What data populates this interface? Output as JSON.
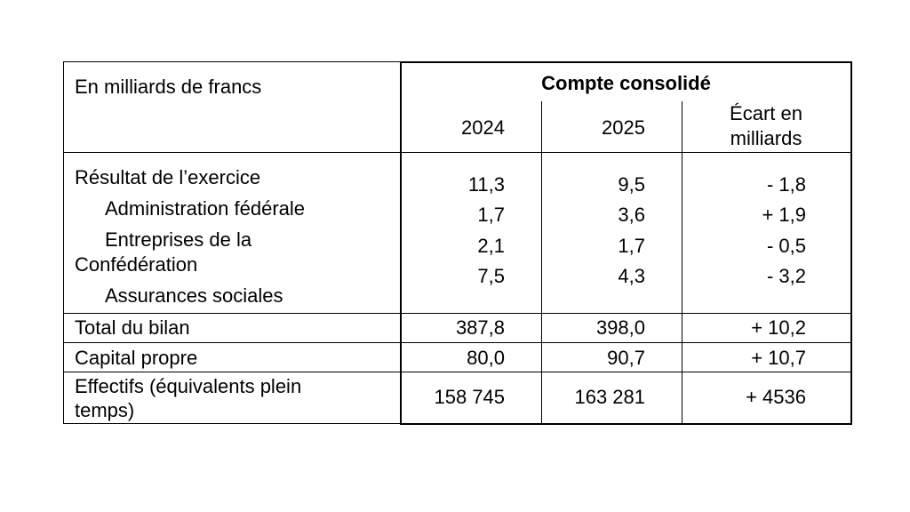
{
  "table": {
    "unit_label": "En milliards de francs",
    "group_header": "Compte consolidé",
    "columns": [
      "2024",
      "2025",
      "Écart en milliards"
    ],
    "column_line1": [
      "2024",
      "2025",
      "Écart en"
    ],
    "column_line2": [
      "",
      "",
      "milliards"
    ],
    "rows": [
      {
        "label": "Résultat de l’exercice",
        "values": [
          "11,3",
          "9,5",
          "- 1,8"
        ]
      },
      {
        "label": "Administration fédérale",
        "values": [
          "1,7",
          "3,6",
          "+ 1,9"
        ]
      },
      {
        "label_line1": "Entreprises de la",
        "label_line2": "Confédération",
        "values": [
          "2,1",
          "1,7",
          "- 0,5"
        ]
      },
      {
        "label": "Assurances sociales",
        "values": [
          "7,5",
          "4,3",
          "- 3,2"
        ]
      },
      {
        "label": "Total du bilan",
        "values": [
          "387,8",
          "398,0",
          "+ 10,2"
        ]
      },
      {
        "label": "Capital propre",
        "values": [
          "80,0",
          "90,7",
          "+ 10,7"
        ]
      },
      {
        "label_line1": "Effectifs (équivalents plein",
        "label_line2": "temps)",
        "values": [
          "158 745",
          "163 281",
          "+ 4536"
        ]
      }
    ]
  }
}
